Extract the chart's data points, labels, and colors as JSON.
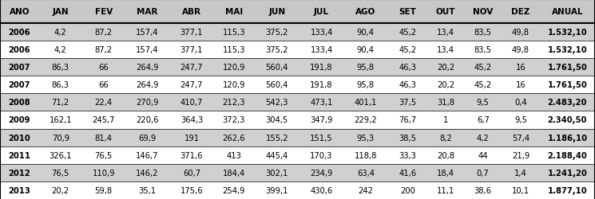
{
  "columns": [
    "ANO",
    "JAN",
    "FEV",
    "MAR",
    "ABR",
    "MAI",
    "JUN",
    "JUL",
    "AGO",
    "SET",
    "OUT",
    "NOV",
    "DEZ",
    "ANUAL"
  ],
  "rows": [
    [
      "2006",
      "4,2",
      "87,2",
      "157,4",
      "377,1",
      "115,3",
      "375,2",
      "133,4",
      "90,4",
      "45,2",
      "13,4",
      "83,5",
      "49,8",
      "1.532,10"
    ],
    [
      "2006",
      "4,2",
      "87,2",
      "157,4",
      "377,1",
      "115,3",
      "375,2",
      "133,4",
      "90,4",
      "45,2",
      "13,4",
      "83,5",
      "49,8",
      "1.532,10"
    ],
    [
      "2007",
      "86,3",
      "66",
      "264,9",
      "247,7",
      "120,9",
      "560,4",
      "191,8",
      "95,8",
      "46,3",
      "20,2",
      "45,2",
      "16",
      "1.761,50"
    ],
    [
      "2007",
      "86,3",
      "66",
      "264,9",
      "247,7",
      "120,9",
      "560,4",
      "191,8",
      "95,8",
      "46,3",
      "20,2",
      "45,2",
      "16",
      "1.761,50"
    ],
    [
      "2008",
      "71,2",
      "22,4",
      "270,9",
      "410,7",
      "212,3",
      "542,3",
      "473,1",
      "401,1",
      "37,5",
      "31,8",
      "9,5",
      "0,4",
      "2.483,20"
    ],
    [
      "2009",
      "162,1",
      "245,7",
      "220,6",
      "364,3",
      "372,3",
      "304,5",
      "347,9",
      "229,2",
      "76,7",
      "1",
      "6,7",
      "9,5",
      "2.340,50"
    ],
    [
      "2010",
      "70,9",
      "81,4",
      "69,9",
      "191",
      "262,6",
      "155,2",
      "151,5",
      "95,3",
      "38,5",
      "8,2",
      "4,2",
      "57,4",
      "1.186,10"
    ],
    [
      "2011",
      "326,1",
      "76,5",
      "146,7",
      "371,6",
      "413",
      "445,4",
      "170,3",
      "118,8",
      "33,3",
      "20,8",
      "44",
      "21,9",
      "2.188,40"
    ],
    [
      "2012",
      "76,5",
      "110,9",
      "146,2",
      "60,7",
      "184,4",
      "302,1",
      "234,9",
      "63,4",
      "41,6",
      "18,4",
      "0,7",
      "1,4",
      "1.241,20"
    ],
    [
      "2013",
      "20,2",
      "59,8",
      "35,1",
      "175,6",
      "254,9",
      "399,1",
      "430,6",
      "242",
      "200",
      "11,1",
      "38,6",
      "10,1",
      "1.877,10"
    ]
  ],
  "shaded_rows": [
    0,
    2,
    4,
    6,
    8
  ],
  "header_bg": "#c8c8c8",
  "shaded_bg": "#d0d0d0",
  "white_bg": "#ffffff",
  "header_font_size": 7.5,
  "cell_font_size": 7.2,
  "bold_col_indices": [
    0,
    13
  ],
  "col_widths_raw": [
    0.95,
    1.05,
    1.05,
    1.08,
    1.08,
    0.98,
    1.12,
    1.05,
    1.1,
    0.95,
    0.9,
    0.92,
    0.92,
    1.35
  ],
  "line_color": "#000000",
  "header_line_lw": 1.5,
  "row_line_lw": 0.5
}
